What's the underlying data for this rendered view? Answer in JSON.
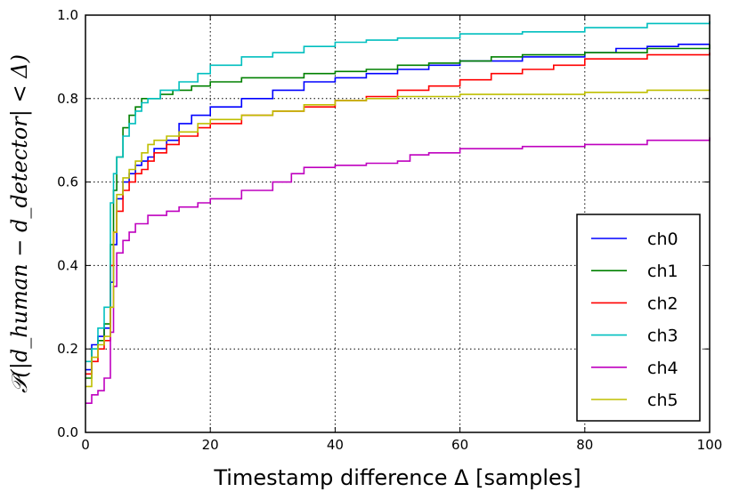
{
  "chart_data": {
    "type": "line",
    "step": true,
    "title": "",
    "xlabel": "Timestamp difference Δ [samples]",
    "ylabel": "𝒫(|d_human − d_detector| < Δ)",
    "xlim": [
      0,
      100
    ],
    "ylim": [
      0.0,
      1.0
    ],
    "xticks": [
      0,
      20,
      40,
      60,
      80,
      100
    ],
    "yticks": [
      0.0,
      0.2,
      0.4,
      0.6,
      0.8,
      1.0
    ],
    "xtick_labels": [
      "0",
      "20",
      "40",
      "60",
      "80",
      "100"
    ],
    "ytick_labels": [
      "0.0",
      "0.2",
      "0.4",
      "0.6",
      "0.8",
      "1.0"
    ],
    "grid": true,
    "legend_position": "bottom-right",
    "series": [
      {
        "name": "ch0",
        "color": "#0000ff",
        "points": [
          [
            0,
            0.15
          ],
          [
            1,
            0.21
          ],
          [
            2,
            0.23
          ],
          [
            3,
            0.25
          ],
          [
            4,
            0.36
          ],
          [
            4.5,
            0.45
          ],
          [
            5,
            0.56
          ],
          [
            6,
            0.6
          ],
          [
            7,
            0.62
          ],
          [
            8,
            0.64
          ],
          [
            9,
            0.65
          ],
          [
            10,
            0.66
          ],
          [
            11,
            0.68
          ],
          [
            13,
            0.7
          ],
          [
            15,
            0.74
          ],
          [
            17,
            0.76
          ],
          [
            20,
            0.78
          ],
          [
            25,
            0.8
          ],
          [
            30,
            0.82
          ],
          [
            35,
            0.84
          ],
          [
            40,
            0.85
          ],
          [
            45,
            0.86
          ],
          [
            50,
            0.87
          ],
          [
            55,
            0.88
          ],
          [
            60,
            0.89
          ],
          [
            70,
            0.9
          ],
          [
            80,
            0.91
          ],
          [
            85,
            0.92
          ],
          [
            90,
            0.925
          ],
          [
            95,
            0.93
          ],
          [
            100,
            0.93
          ]
        ]
      },
      {
        "name": "ch1",
        "color": "#008000",
        "points": [
          [
            0,
            0.13
          ],
          [
            1,
            0.2
          ],
          [
            2,
            0.22
          ],
          [
            3,
            0.26
          ],
          [
            4,
            0.45
          ],
          [
            4.5,
            0.58
          ],
          [
            5,
            0.66
          ],
          [
            6,
            0.73
          ],
          [
            7,
            0.76
          ],
          [
            8,
            0.78
          ],
          [
            9,
            0.8
          ],
          [
            10,
            0.8
          ],
          [
            12,
            0.81
          ],
          [
            14,
            0.82
          ],
          [
            17,
            0.83
          ],
          [
            20,
            0.84
          ],
          [
            25,
            0.85
          ],
          [
            35,
            0.86
          ],
          [
            40,
            0.865
          ],
          [
            45,
            0.87
          ],
          [
            50,
            0.88
          ],
          [
            55,
            0.885
          ],
          [
            60,
            0.89
          ],
          [
            65,
            0.9
          ],
          [
            70,
            0.905
          ],
          [
            80,
            0.91
          ],
          [
            90,
            0.92
          ],
          [
            100,
            0.93
          ]
        ]
      },
      {
        "name": "ch2",
        "color": "#ff0000",
        "points": [
          [
            0,
            0.14
          ],
          [
            1,
            0.17
          ],
          [
            2,
            0.2
          ],
          [
            3,
            0.22
          ],
          [
            4,
            0.4
          ],
          [
            4.5,
            0.48
          ],
          [
            5,
            0.53
          ],
          [
            6,
            0.58
          ],
          [
            7,
            0.6
          ],
          [
            8,
            0.62
          ],
          [
            9,
            0.63
          ],
          [
            10,
            0.65
          ],
          [
            11,
            0.67
          ],
          [
            13,
            0.69
          ],
          [
            15,
            0.71
          ],
          [
            18,
            0.73
          ],
          [
            20,
            0.74
          ],
          [
            25,
            0.76
          ],
          [
            30,
            0.77
          ],
          [
            35,
            0.78
          ],
          [
            40,
            0.795
          ],
          [
            45,
            0.805
          ],
          [
            50,
            0.82
          ],
          [
            55,
            0.83
          ],
          [
            60,
            0.845
          ],
          [
            65,
            0.86
          ],
          [
            70,
            0.87
          ],
          [
            75,
            0.88
          ],
          [
            80,
            0.895
          ],
          [
            90,
            0.905
          ],
          [
            100,
            0.91
          ]
        ]
      },
      {
        "name": "ch3",
        "color": "#00bfbf",
        "points": [
          [
            0,
            0.17
          ],
          [
            1,
            0.2
          ],
          [
            2,
            0.25
          ],
          [
            3,
            0.3
          ],
          [
            4,
            0.55
          ],
          [
            4.5,
            0.62
          ],
          [
            5,
            0.66
          ],
          [
            6,
            0.71
          ],
          [
            7,
            0.74
          ],
          [
            8,
            0.77
          ],
          [
            9,
            0.79
          ],
          [
            10,
            0.8
          ],
          [
            12,
            0.82
          ],
          [
            15,
            0.84
          ],
          [
            18,
            0.86
          ],
          [
            20,
            0.88
          ],
          [
            25,
            0.9
          ],
          [
            30,
            0.91
          ],
          [
            35,
            0.925
          ],
          [
            40,
            0.935
          ],
          [
            45,
            0.94
          ],
          [
            50,
            0.945
          ],
          [
            60,
            0.955
          ],
          [
            70,
            0.96
          ],
          [
            80,
            0.97
          ],
          [
            90,
            0.98
          ],
          [
            100,
            0.985
          ]
        ]
      },
      {
        "name": "ch4",
        "color": "#bf00bf",
        "points": [
          [
            0,
            0.07
          ],
          [
            1,
            0.09
          ],
          [
            2,
            0.1
          ],
          [
            3,
            0.13
          ],
          [
            4,
            0.24
          ],
          [
            4.5,
            0.35
          ],
          [
            5,
            0.43
          ],
          [
            6,
            0.46
          ],
          [
            7,
            0.48
          ],
          [
            8,
            0.5
          ],
          [
            10,
            0.52
          ],
          [
            13,
            0.53
          ],
          [
            15,
            0.54
          ],
          [
            18,
            0.55
          ],
          [
            20,
            0.56
          ],
          [
            25,
            0.58
          ],
          [
            30,
            0.6
          ],
          [
            33,
            0.62
          ],
          [
            35,
            0.635
          ],
          [
            40,
            0.64
          ],
          [
            45,
            0.645
          ],
          [
            50,
            0.65
          ],
          [
            52,
            0.665
          ],
          [
            55,
            0.67
          ],
          [
            60,
            0.68
          ],
          [
            65,
            0.68
          ],
          [
            70,
            0.685
          ],
          [
            80,
            0.69
          ],
          [
            90,
            0.7
          ],
          [
            100,
            0.707
          ]
        ]
      },
      {
        "name": "ch5",
        "color": "#bfbf00",
        "points": [
          [
            0,
            0.11
          ],
          [
            1,
            0.18
          ],
          [
            2,
            0.21
          ],
          [
            3,
            0.23
          ],
          [
            4,
            0.3
          ],
          [
            4.5,
            0.48
          ],
          [
            5,
            0.57
          ],
          [
            6,
            0.61
          ],
          [
            7,
            0.63
          ],
          [
            8,
            0.65
          ],
          [
            9,
            0.67
          ],
          [
            10,
            0.69
          ],
          [
            11,
            0.7
          ],
          [
            13,
            0.71
          ],
          [
            15,
            0.72
          ],
          [
            18,
            0.74
          ],
          [
            20,
            0.75
          ],
          [
            25,
            0.76
          ],
          [
            30,
            0.77
          ],
          [
            35,
            0.785
          ],
          [
            40,
            0.795
          ],
          [
            45,
            0.8
          ],
          [
            50,
            0.805
          ],
          [
            60,
            0.81
          ],
          [
            70,
            0.81
          ],
          [
            80,
            0.815
          ],
          [
            90,
            0.82
          ],
          [
            100,
            0.822
          ]
        ]
      }
    ]
  }
}
